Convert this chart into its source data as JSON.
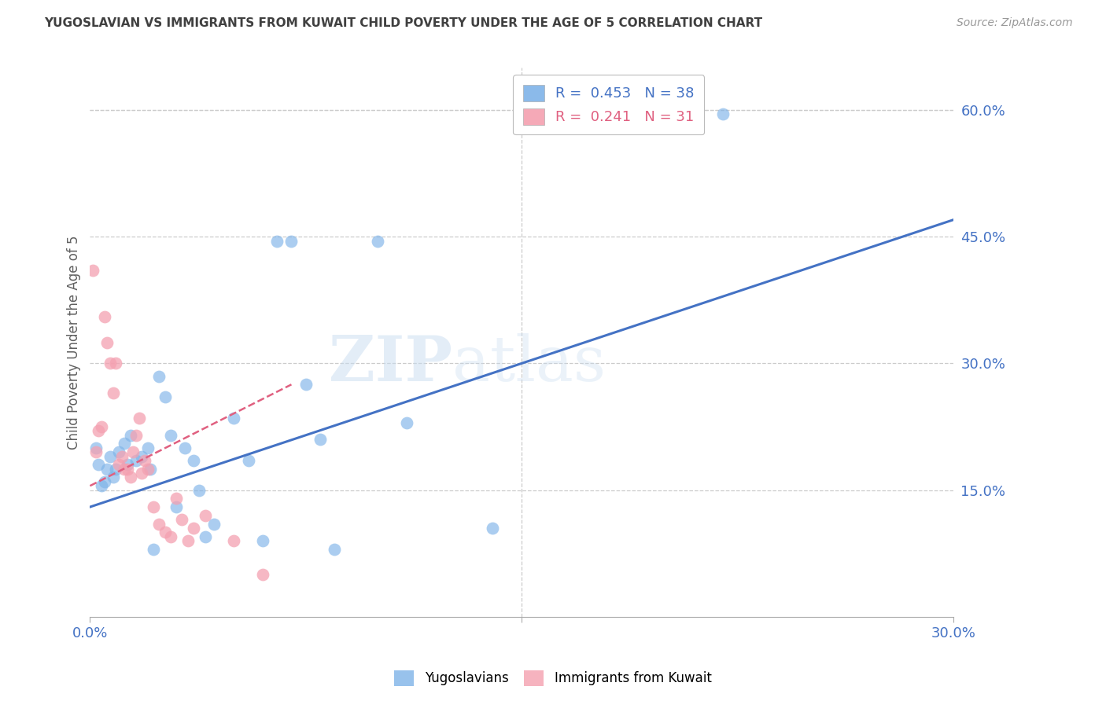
{
  "title": "YUGOSLAVIAN VS IMMIGRANTS FROM KUWAIT CHILD POVERTY UNDER THE AGE OF 5 CORRELATION CHART",
  "source": "Source: ZipAtlas.com",
  "ylabel": "Child Poverty Under the Age of 5",
  "xlim": [
    0.0,
    0.3
  ],
  "ylim": [
    0.0,
    0.65
  ],
  "y_ticks_right": [
    0.0,
    0.15,
    0.3,
    0.45,
    0.6
  ],
  "y_tick_labels_right": [
    "",
    "15.0%",
    "30.0%",
    "45.0%",
    "60.0%"
  ],
  "legend_R1": "0.453",
  "legend_N1": "38",
  "legend_R2": "0.241",
  "legend_N2": "31",
  "blue_color": "#7EB3E8",
  "pink_color": "#F4A0B0",
  "line_blue": "#4472C4",
  "line_pink": "#E06080",
  "title_color": "#404040",
  "axis_label_color": "#606060",
  "tick_color_right": "#4472C4",
  "grid_color": "#CCCCCC",
  "watermark": "ZIPatlas",
  "blue_line_x": [
    0.0,
    0.3
  ],
  "blue_line_y": [
    0.13,
    0.47
  ],
  "pink_line_x": [
    0.0,
    0.07
  ],
  "pink_line_y": [
    0.155,
    0.275
  ],
  "yug_points_x": [
    0.002,
    0.003,
    0.004,
    0.005,
    0.006,
    0.007,
    0.008,
    0.009,
    0.01,
    0.012,
    0.013,
    0.014,
    0.016,
    0.018,
    0.02,
    0.021,
    0.022,
    0.024,
    0.026,
    0.028,
    0.03,
    0.033,
    0.036,
    0.038,
    0.04,
    0.043,
    0.05,
    0.055,
    0.06,
    0.065,
    0.07,
    0.075,
    0.08,
    0.085,
    0.1,
    0.11,
    0.14,
    0.22
  ],
  "yug_points_y": [
    0.2,
    0.18,
    0.155,
    0.16,
    0.175,
    0.19,
    0.165,
    0.175,
    0.195,
    0.205,
    0.18,
    0.215,
    0.185,
    0.19,
    0.2,
    0.175,
    0.08,
    0.285,
    0.26,
    0.215,
    0.13,
    0.2,
    0.185,
    0.15,
    0.095,
    0.11,
    0.235,
    0.185,
    0.09,
    0.445,
    0.445,
    0.275,
    0.21,
    0.08,
    0.445,
    0.23,
    0.105,
    0.595
  ],
  "kuw_points_x": [
    0.001,
    0.002,
    0.003,
    0.004,
    0.005,
    0.006,
    0.007,
    0.008,
    0.009,
    0.01,
    0.011,
    0.012,
    0.013,
    0.014,
    0.015,
    0.016,
    0.017,
    0.018,
    0.019,
    0.02,
    0.022,
    0.024,
    0.026,
    0.028,
    0.03,
    0.032,
    0.034,
    0.036,
    0.04,
    0.05,
    0.06
  ],
  "kuw_points_y": [
    0.41,
    0.195,
    0.22,
    0.225,
    0.355,
    0.325,
    0.3,
    0.265,
    0.3,
    0.18,
    0.19,
    0.175,
    0.175,
    0.165,
    0.195,
    0.215,
    0.235,
    0.17,
    0.185,
    0.175,
    0.13,
    0.11,
    0.1,
    0.095,
    0.14,
    0.115,
    0.09,
    0.105,
    0.12,
    0.09,
    0.05
  ]
}
